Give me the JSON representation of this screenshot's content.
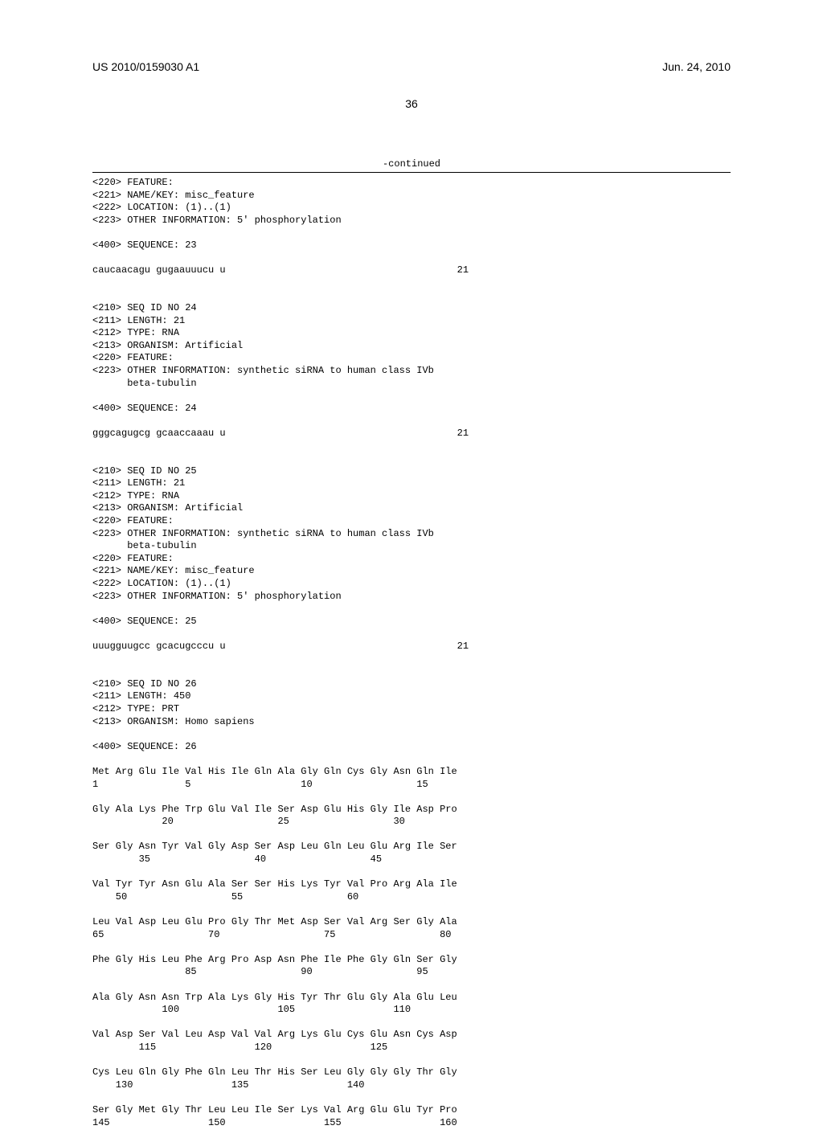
{
  "header": {
    "publication_number": "US 2010/0159030 A1",
    "publication_date": "Jun. 24, 2010"
  },
  "page_number": "36",
  "continued_label": "-continued",
  "sequences": [
    {
      "meta": [
        "<220> FEATURE:",
        "<221> NAME/KEY: misc_feature",
        "<222> LOCATION: (1)..(1)",
        "<223> OTHER INFORMATION: 5' phosphorylation"
      ],
      "seq_header": "<400> SEQUENCE: 23",
      "seq_line": "caucaacagu gugaauuucu u",
      "seq_length": "21"
    },
    {
      "meta": [
        "<210> SEQ ID NO 24",
        "<211> LENGTH: 21",
        "<212> TYPE: RNA",
        "<213> ORGANISM: Artificial",
        "<220> FEATURE:",
        "<223> OTHER INFORMATION: synthetic siRNA to human class IVb",
        "      beta-tubulin"
      ],
      "seq_header": "<400> SEQUENCE: 24",
      "seq_line": "gggcagugcg gcaaccaaau u",
      "seq_length": "21"
    },
    {
      "meta": [
        "<210> SEQ ID NO 25",
        "<211> LENGTH: 21",
        "<212> TYPE: RNA",
        "<213> ORGANISM: Artificial",
        "<220> FEATURE:",
        "<223> OTHER INFORMATION: synthetic siRNA to human class IVb",
        "      beta-tubulin",
        "<220> FEATURE:",
        "<221> NAME/KEY: misc_feature",
        "<222> LOCATION: (1)..(1)",
        "<223> OTHER INFORMATION: 5' phosphorylation"
      ],
      "seq_header": "<400> SEQUENCE: 25",
      "seq_line": "uuugguugcc gcacugcccu u",
      "seq_length": "21"
    },
    {
      "meta": [
        "<210> SEQ ID NO 26",
        "<211> LENGTH: 450",
        "<212> TYPE: PRT",
        "<213> ORGANISM: Homo sapiens"
      ],
      "seq_header": "<400> SEQUENCE: 26",
      "protein_rows": [
        {
          "aa": "Met Arg Glu Ile Val His Ile Gln Ala Gly Gln Cys Gly Asn Gln Ile",
          "num": "1               5                   10                  15"
        },
        {
          "aa": "Gly Ala Lys Phe Trp Glu Val Ile Ser Asp Glu His Gly Ile Asp Pro",
          "num": "            20                  25                  30"
        },
        {
          "aa": "Ser Gly Asn Tyr Val Gly Asp Ser Asp Leu Gln Leu Glu Arg Ile Ser",
          "num": "        35                  40                  45"
        },
        {
          "aa": "Val Tyr Tyr Asn Glu Ala Ser Ser His Lys Tyr Val Pro Arg Ala Ile",
          "num": "    50                  55                  60"
        },
        {
          "aa": "Leu Val Asp Leu Glu Pro Gly Thr Met Asp Ser Val Arg Ser Gly Ala",
          "num": "65                  70                  75                  80"
        },
        {
          "aa": "Phe Gly His Leu Phe Arg Pro Asp Asn Phe Ile Phe Gly Gln Ser Gly",
          "num": "                85                  90                  95"
        },
        {
          "aa": "Ala Gly Asn Asn Trp Ala Lys Gly His Tyr Thr Glu Gly Ala Glu Leu",
          "num": "            100                 105                 110"
        },
        {
          "aa": "Val Asp Ser Val Leu Asp Val Val Arg Lys Glu Cys Glu Asn Cys Asp",
          "num": "        115                 120                 125"
        },
        {
          "aa": "Cys Leu Gln Gly Phe Gln Leu Thr His Ser Leu Gly Gly Gly Thr Gly",
          "num": "    130                 135                 140"
        },
        {
          "aa": "Ser Gly Met Gly Thr Leu Leu Ile Ser Lys Val Arg Glu Glu Tyr Pro",
          "num": "145                 150                 155                 160"
        }
      ]
    }
  ]
}
